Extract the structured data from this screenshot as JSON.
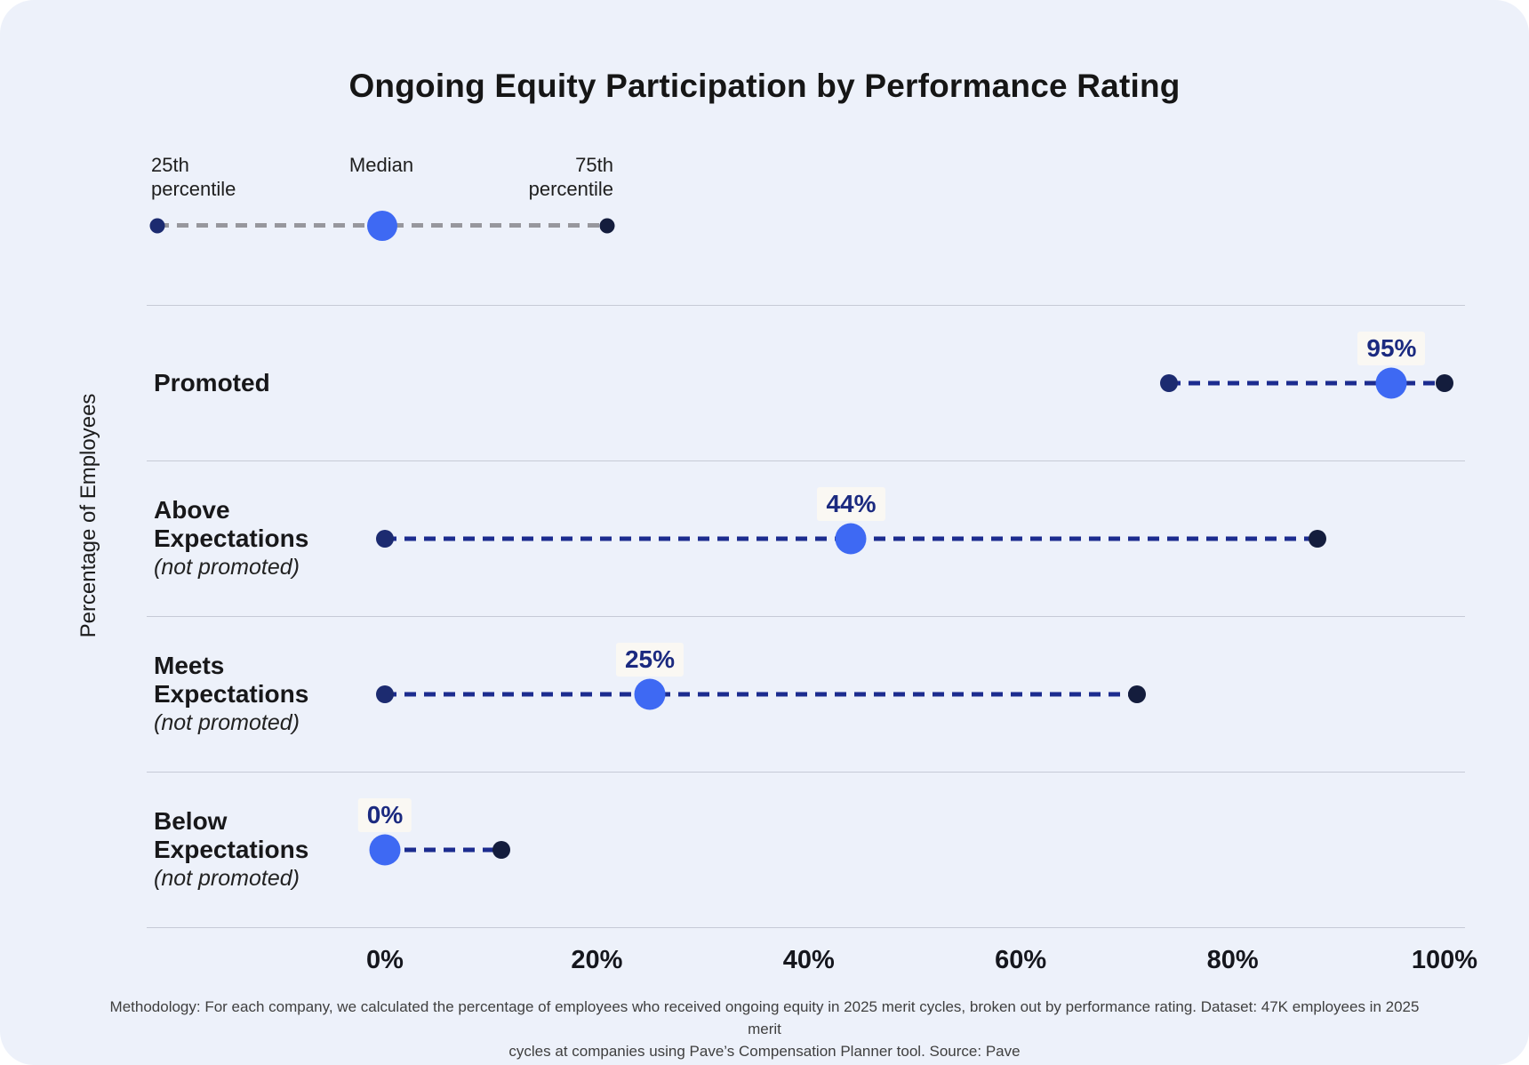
{
  "title": "Ongoing Equity Participation by Performance Rating",
  "legend": {
    "p25_label": "25th percentile",
    "median_label": "Median",
    "p75_label": "75th percentile"
  },
  "y_axis_label": "Percentage of Employees",
  "footer": "Methodology: For each company, we calculated the percentage of employees who received ongoing equity in 2025 merit cycles, broken out by performance rating. Dataset: 47K employees in 2025 merit\ncycles at companies using Pave’s Compensation Planner tool. Source: Pave",
  "chart_data": {
    "type": "dumbbell",
    "title": "Ongoing Equity Participation by Performance Rating",
    "ylabel": "Percentage of Employees",
    "xlim": [
      0,
      100
    ],
    "x_tick_values": [
      0,
      20,
      40,
      60,
      80,
      100
    ],
    "x_tick_labels": [
      "0%",
      "20%",
      "40%",
      "60%",
      "80%",
      "100%"
    ],
    "legend_entries": [
      "25th percentile",
      "Median",
      "75th percentile"
    ],
    "grid": "row-dividers",
    "rows": [
      {
        "label": "Promoted",
        "sublabel": "",
        "p25": 74,
        "median": 95,
        "p75": 100,
        "median_label": "95%"
      },
      {
        "label": "Above Expectations",
        "sublabel": "(not promoted)",
        "p25": 0,
        "median": 44,
        "p75": 88,
        "median_label": "44%"
      },
      {
        "label": "Meets Expectations",
        "sublabel": "(not promoted)",
        "p25": 0,
        "median": 25,
        "p75": 71,
        "median_label": "25%"
      },
      {
        "label": "Below Expectations",
        "sublabel": "(not promoted)",
        "p25": 0,
        "median": 0,
        "p75": 11,
        "median_label": "0%"
      }
    ],
    "colors": {
      "background": "#edf1fa",
      "median_dot": "#3e69f3",
      "p25_dot": "#1c2b70",
      "p75_dot": "#141d3d",
      "range_dash": "#1c2c8f",
      "legend_dash": "#97979d",
      "value_label_text": "#1b2a80",
      "divider": "#c6cad6"
    }
  }
}
